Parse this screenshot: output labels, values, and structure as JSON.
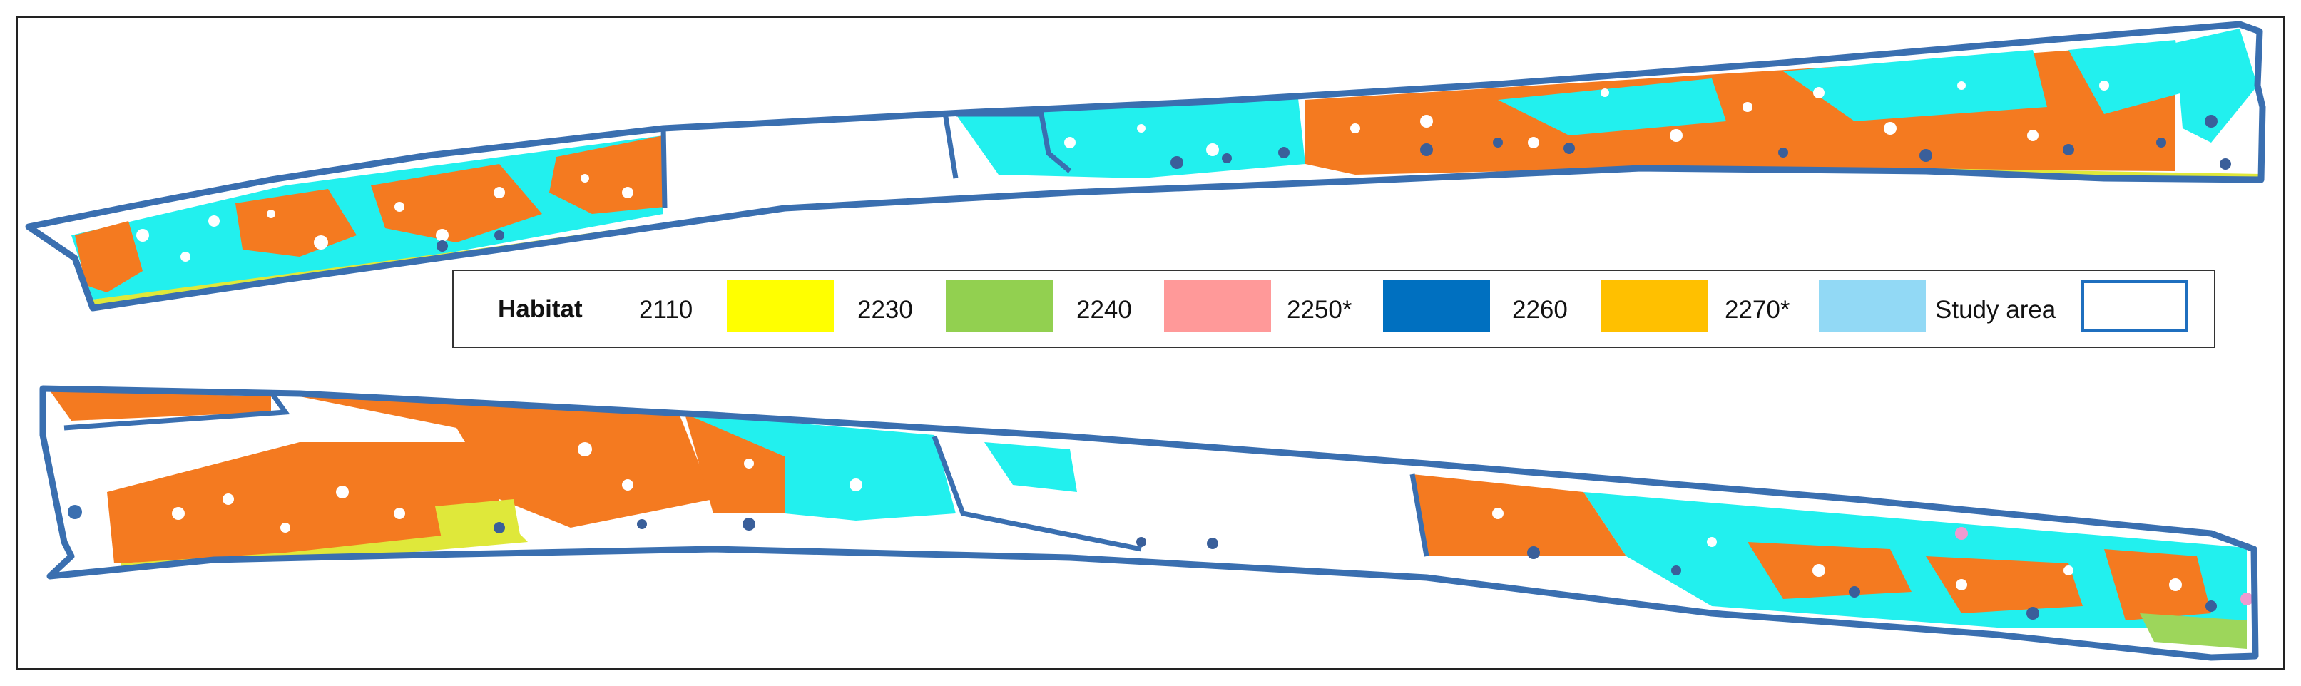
{
  "legend": {
    "title": "Habitat",
    "items": [
      {
        "code": "2110",
        "color": "#ffff00"
      },
      {
        "code": "2230",
        "color": "#92d050"
      },
      {
        "code": "2240",
        "color": "#ff9999"
      },
      {
        "code": "2250*",
        "color": "#0070c0"
      },
      {
        "code": "2260",
        "color": "#ffc000"
      },
      {
        "code": "2270*",
        "color": "#92d9f5"
      }
    ],
    "study_area": {
      "label": "Study area",
      "border_color": "#1f6fbf"
    }
  },
  "map_colors": {
    "outline": "#3a6fb0",
    "orange_habitat": "#f47a20",
    "cyan_habitat": "#22f0ee",
    "yellow_green_habitat": "#dfe83a",
    "white_patches": "#ffffff",
    "dark_spots": "#3a5f9a",
    "light_green": "#9dd65b",
    "pink": "#f09ad0"
  }
}
